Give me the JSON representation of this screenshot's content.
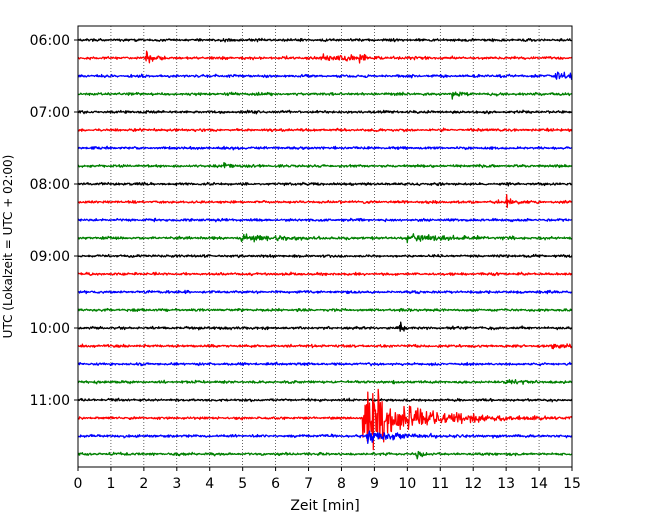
{
  "chart_data": {
    "type": "line",
    "title": "",
    "xlabel": "Zeit  [min]",
    "ylabel": "UTC (Lokalzeit = UTC + 02:00)",
    "xlim": [
      0,
      15
    ],
    "x_ticks": [
      "0",
      "1",
      "2",
      "3",
      "4",
      "5",
      "6",
      "7",
      "8",
      "9",
      "10",
      "11",
      "12",
      "13",
      "14",
      "15"
    ],
    "y_tick_labels": [
      "06:00",
      "07:00",
      "08:00",
      "09:00",
      "10:00",
      "11:00"
    ],
    "trace_interval_minutes": 15,
    "first_trace": "06:00",
    "trace_count": 24,
    "trace_colors": [
      "#000000",
      "#ff0000",
      "#0000ff",
      "#008000"
    ],
    "grid": "x-dotted",
    "events": [
      {
        "trace": 1,
        "minute": 2.1,
        "amplitude": 1.2,
        "decay": 0.2
      },
      {
        "trace": 1,
        "minute": 7.5,
        "amplitude": 0.5,
        "decay": 1.0
      },
      {
        "trace": 1,
        "minute": 8.6,
        "amplitude": 0.6,
        "decay": 0.1
      },
      {
        "trace": 2,
        "minute": 14.5,
        "amplitude": 0.6,
        "decay": 0.5
      },
      {
        "trace": 3,
        "minute": 11.4,
        "amplitude": 0.7,
        "decay": 0.1
      },
      {
        "trace": 7,
        "minute": 4.4,
        "amplitude": 0.6,
        "decay": 0.2
      },
      {
        "trace": 9,
        "minute": 13.05,
        "amplitude": 1.3,
        "decay": 0.15
      },
      {
        "trace": 11,
        "minute": 5.0,
        "amplitude": 0.6,
        "decay": 1.2
      },
      {
        "trace": 11,
        "minute": 10.0,
        "amplitude": 0.5,
        "decay": 1.5
      },
      {
        "trace": 16,
        "minute": 9.8,
        "amplitude": 1.0,
        "decay": 0.1
      },
      {
        "trace": 17,
        "minute": 14.4,
        "amplitude": 0.5,
        "decay": 0.5
      },
      {
        "trace": 19,
        "minute": 13.0,
        "amplitude": 0.4,
        "decay": 0.4
      },
      {
        "trace": 21,
        "minute": 8.7,
        "amplitude": 6.0,
        "decay": 1.4
      },
      {
        "trace": 22,
        "minute": 8.8,
        "amplitude": 1.0,
        "decay": 1.0
      },
      {
        "trace": 23,
        "minute": 10.3,
        "amplitude": 0.6,
        "decay": 0.2
      }
    ]
  }
}
